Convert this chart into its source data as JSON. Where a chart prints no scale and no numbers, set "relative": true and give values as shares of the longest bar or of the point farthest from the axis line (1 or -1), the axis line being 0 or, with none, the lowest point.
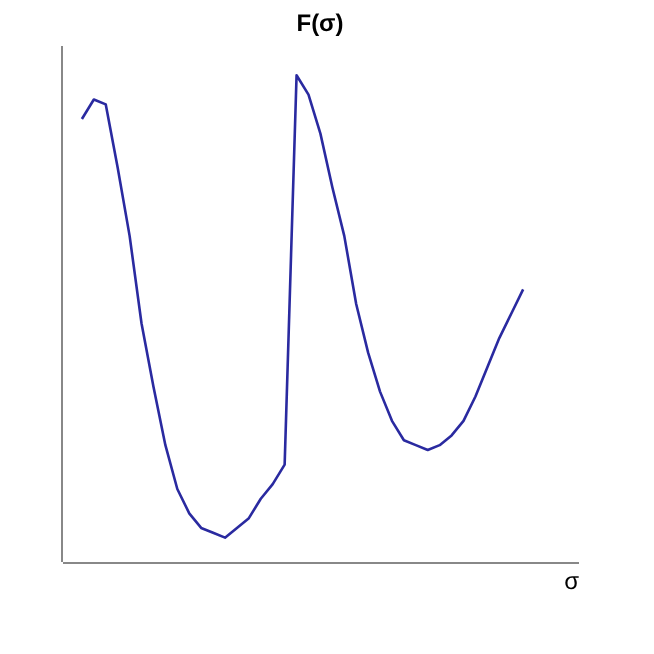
{
  "chart_data": {
    "type": "line",
    "title": "F(σ)",
    "xlabel": "σ",
    "relative": true,
    "grid": false,
    "marker": "none",
    "line_style": "solid",
    "categories": [
      null,
      null,
      null,
      null,
      null,
      null,
      null,
      null,
      null,
      null,
      null,
      null,
      null,
      null,
      null,
      null,
      null,
      null,
      null,
      null,
      null,
      null,
      null,
      null,
      null,
      null,
      null,
      null,
      null,
      null,
      null,
      null,
      null,
      null,
      null,
      null,
      null,
      null
    ],
    "series": [
      {
        "color": "#2a2aa0",
        "values": [
          0.91,
          0.95,
          0.94,
          0.81,
          0.67,
          0.49,
          0.36,
          0.24,
          0.15,
          0.1,
          0.07,
          0.06,
          0.05,
          0.07,
          0.09,
          0.13,
          0.16,
          0.2,
          1.0,
          0.96,
          0.88,
          0.77,
          0.67,
          0.53,
          0.43,
          0.35,
          0.29,
          0.25,
          0.24,
          0.23,
          0.24,
          0.26,
          0.29,
          0.34,
          0.4,
          0.46,
          0.51,
          0.56
        ]
      }
    ]
  }
}
